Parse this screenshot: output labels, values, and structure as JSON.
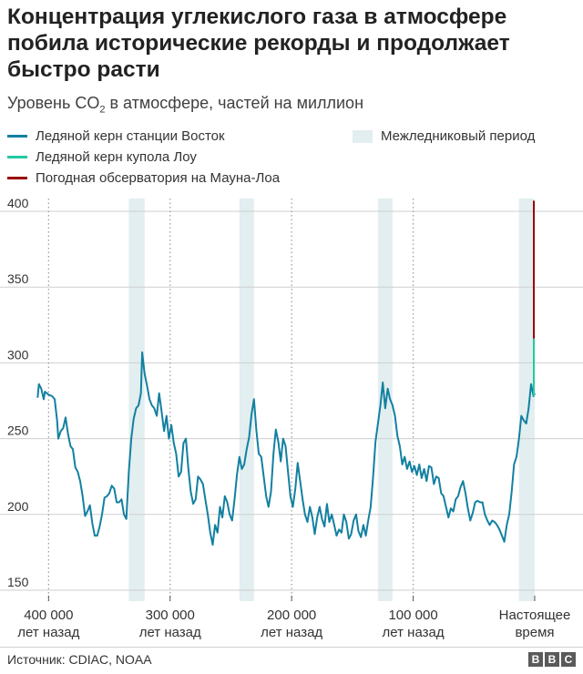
{
  "header": {
    "title": "Концентрация углекислого газа в атмосфере побила исторические рекорды и продолжает быстро расти",
    "subtitle_pre": "Уровень CO",
    "subtitle_sub": "2",
    "subtitle_post": " в атмосфере, частей на миллион"
  },
  "legend": {
    "vostok": "Ледяной керн станции Восток",
    "law_dome": "Ледяной керн купола Лоу",
    "mauna_loa": "Погодная обсерватория на Мауна-Лоа",
    "interglacial": "Межледниковый период"
  },
  "colors": {
    "vostok": "#1380A1",
    "law_dome": "#22C9A0",
    "mauna_loa": "#990000",
    "interglacial": "#E2EEF0",
    "grid": "#cfcfcf"
  },
  "chart_data": {
    "type": "line",
    "xlabel": "",
    "ylabel": "",
    "ylim": [
      150,
      405
    ],
    "xlim": [
      -410000,
      0
    ],
    "y_ticks": [
      150,
      200,
      250,
      300,
      350,
      400
    ],
    "x_ticks": [
      {
        "x": -400000,
        "line1": "400 000",
        "line2": "лет назад"
      },
      {
        "x": -300000,
        "line1": "300 000",
        "line2": "лет назад"
      },
      {
        "x": -200000,
        "line1": "200 000",
        "line2": "лет назад"
      },
      {
        "x": -100000,
        "line1": "100 000",
        "line2": "лет назад"
      },
      {
        "x": 0,
        "line1": "Настоящее",
        "line2": "время"
      }
    ],
    "interglacial_periods": [
      [
        -334000,
        -321000
      ],
      [
        -243000,
        -231000
      ],
      [
        -129000,
        -117000
      ],
      [
        -13000,
        0
      ]
    ],
    "series": [
      {
        "name": "Ледяной керн станции Восток",
        "points": [
          [
            -409000,
            277
          ],
          [
            -408000,
            286
          ],
          [
            -406000,
            283
          ],
          [
            -404000,
            276
          ],
          [
            -403000,
            281
          ],
          [
            -400000,
            279
          ],
          [
            -397000,
            278
          ],
          [
            -395000,
            276
          ],
          [
            -393000,
            262
          ],
          [
            -392000,
            250
          ],
          [
            -390000,
            255
          ],
          [
            -388000,
            257
          ],
          [
            -386000,
            264
          ],
          [
            -384000,
            253
          ],
          [
            -382000,
            245
          ],
          [
            -380000,
            243
          ],
          [
            -378000,
            231
          ],
          [
            -376000,
            228
          ],
          [
            -374000,
            222
          ],
          [
            -372000,
            212
          ],
          [
            -370000,
            199
          ],
          [
            -368000,
            202
          ],
          [
            -366000,
            206
          ],
          [
            -364000,
            194
          ],
          [
            -362000,
            186
          ],
          [
            -360000,
            186
          ],
          [
            -358000,
            192
          ],
          [
            -356000,
            200
          ],
          [
            -354000,
            211
          ],
          [
            -352000,
            212
          ],
          [
            -350000,
            214
          ],
          [
            -348000,
            219
          ],
          [
            -346000,
            217
          ],
          [
            -344000,
            208
          ],
          [
            -342000,
            208
          ],
          [
            -340000,
            210
          ],
          [
            -338000,
            200
          ],
          [
            -336000,
            197
          ],
          [
            -334000,
            228
          ],
          [
            -332000,
            250
          ],
          [
            -330000,
            263
          ],
          [
            -328000,
            270
          ],
          [
            -326000,
            272
          ],
          [
            -324000,
            280
          ],
          [
            -323000,
            307
          ],
          [
            -321000,
            293
          ],
          [
            -319000,
            285
          ],
          [
            -317000,
            276
          ],
          [
            -315000,
            272
          ],
          [
            -313000,
            270
          ],
          [
            -311000,
            265
          ],
          [
            -309000,
            280
          ],
          [
            -307000,
            268
          ],
          [
            -305000,
            255
          ],
          [
            -303000,
            265
          ],
          [
            -301000,
            250
          ],
          [
            -299000,
            259
          ],
          [
            -297000,
            247
          ],
          [
            -295000,
            240
          ],
          [
            -293000,
            225
          ],
          [
            -291000,
            228
          ],
          [
            -289000,
            247
          ],
          [
            -287000,
            250
          ],
          [
            -285000,
            230
          ],
          [
            -283000,
            215
          ],
          [
            -281000,
            207
          ],
          [
            -279000,
            210
          ],
          [
            -277000,
            225
          ],
          [
            -275000,
            223
          ],
          [
            -273000,
            220
          ],
          [
            -271000,
            210
          ],
          [
            -269000,
            200
          ],
          [
            -267000,
            188
          ],
          [
            -265000,
            180
          ],
          [
            -263000,
            193
          ],
          [
            -261000,
            188
          ],
          [
            -259000,
            205
          ],
          [
            -257000,
            198
          ],
          [
            -255000,
            212
          ],
          [
            -253000,
            208
          ],
          [
            -251000,
            200
          ],
          [
            -249000,
            196
          ],
          [
            -247000,
            210
          ],
          [
            -245000,
            226
          ],
          [
            -243000,
            238
          ],
          [
            -241000,
            230
          ],
          [
            -239000,
            233
          ],
          [
            -237000,
            243
          ],
          [
            -235000,
            251
          ],
          [
            -233000,
            266
          ],
          [
            -231000,
            276
          ],
          [
            -229000,
            255
          ],
          [
            -227000,
            240
          ],
          [
            -225000,
            238
          ],
          [
            -223000,
            225
          ],
          [
            -221000,
            212
          ],
          [
            -219000,
            205
          ],
          [
            -217000,
            215
          ],
          [
            -215000,
            240
          ],
          [
            -213000,
            256
          ],
          [
            -211000,
            248
          ],
          [
            -209000,
            235
          ],
          [
            -207000,
            250
          ],
          [
            -205000,
            245
          ],
          [
            -203000,
            228
          ],
          [
            -201000,
            212
          ],
          [
            -199000,
            205
          ],
          [
            -197000,
            217
          ],
          [
            -195000,
            234
          ],
          [
            -193000,
            222
          ],
          [
            -191000,
            210
          ],
          [
            -189000,
            200
          ],
          [
            -187000,
            195
          ],
          [
            -185000,
            205
          ],
          [
            -183000,
            198
          ],
          [
            -181000,
            187
          ],
          [
            -179000,
            198
          ],
          [
            -177000,
            205
          ],
          [
            -175000,
            197
          ],
          [
            -173000,
            192
          ],
          [
            -171000,
            207
          ],
          [
            -169000,
            195
          ],
          [
            -167000,
            200
          ],
          [
            -165000,
            193
          ],
          [
            -163000,
            186
          ],
          [
            -161000,
            190
          ],
          [
            -159000,
            188
          ],
          [
            -157000,
            200
          ],
          [
            -155000,
            195
          ],
          [
            -153000,
            184
          ],
          [
            -151000,
            187
          ],
          [
            -149000,
            196
          ],
          [
            -147000,
            200
          ],
          [
            -145000,
            189
          ],
          [
            -143000,
            185
          ],
          [
            -141000,
            193
          ],
          [
            -139000,
            186
          ],
          [
            -137000,
            196
          ],
          [
            -135000,
            205
          ],
          [
            -133000,
            225
          ],
          [
            -131000,
            248
          ],
          [
            -129000,
            260
          ],
          [
            -127000,
            272
          ],
          [
            -125000,
            287
          ],
          [
            -123000,
            270
          ],
          [
            -121000,
            283
          ],
          [
            -119000,
            276
          ],
          [
            -117000,
            272
          ],
          [
            -115000,
            265
          ],
          [
            -113000,
            252
          ],
          [
            -111000,
            245
          ],
          [
            -109000,
            233
          ],
          [
            -107000,
            238
          ],
          [
            -105000,
            230
          ],
          [
            -103000,
            235
          ],
          [
            -101000,
            228
          ],
          [
            -99000,
            232
          ],
          [
            -97000,
            226
          ],
          [
            -95000,
            233
          ],
          [
            -93000,
            224
          ],
          [
            -91000,
            230
          ],
          [
            -89000,
            222
          ],
          [
            -87000,
            232
          ],
          [
            -85000,
            231
          ],
          [
            -83000,
            220
          ],
          [
            -81000,
            225
          ],
          [
            -79000,
            224
          ],
          [
            -77000,
            214
          ],
          [
            -75000,
            212
          ],
          [
            -73000,
            205
          ],
          [
            -71000,
            198
          ],
          [
            -69000,
            204
          ],
          [
            -67000,
            202
          ],
          [
            -65000,
            210
          ],
          [
            -63000,
            212
          ],
          [
            -61000,
            218
          ],
          [
            -59000,
            222
          ],
          [
            -57000,
            214
          ],
          [
            -55000,
            204
          ],
          [
            -53000,
            196
          ],
          [
            -51000,
            201
          ],
          [
            -49000,
            208
          ],
          [
            -47000,
            209
          ],
          [
            -45000,
            208
          ],
          [
            -43000,
            208
          ],
          [
            -41000,
            200
          ],
          [
            -39000,
            196
          ],
          [
            -37000,
            193
          ],
          [
            -35000,
            196
          ],
          [
            -33000,
            195
          ],
          [
            -31000,
            193
          ],
          [
            -29000,
            190
          ],
          [
            -27000,
            186
          ],
          [
            -25000,
            182
          ],
          [
            -23000,
            193
          ],
          [
            -21000,
            200
          ],
          [
            -19000,
            215
          ],
          [
            -17000,
            233
          ],
          [
            -15000,
            238
          ],
          [
            -13000,
            250
          ],
          [
            -11000,
            265
          ],
          [
            -9000,
            262
          ],
          [
            -7000,
            260
          ],
          [
            -5000,
            270
          ],
          [
            -3000,
            286
          ],
          [
            -1000,
            278
          ],
          [
            0,
            280
          ]
        ]
      },
      {
        "name": "Ледяной керн купола Лоу",
        "points": [
          [
            -900,
            278
          ],
          [
            -400,
            279
          ],
          [
            -100,
            285
          ],
          [
            -40,
            300
          ],
          [
            0,
            316
          ]
        ]
      },
      {
        "name": "Погодная обсерватория на Мауна-Лоа",
        "points": [
          [
            0,
            316
          ],
          [
            0,
            410
          ]
        ]
      }
    ]
  },
  "footer": {
    "source": "Источник: CDIAC, NOAA",
    "logo": [
      "B",
      "B",
      "C"
    ]
  }
}
